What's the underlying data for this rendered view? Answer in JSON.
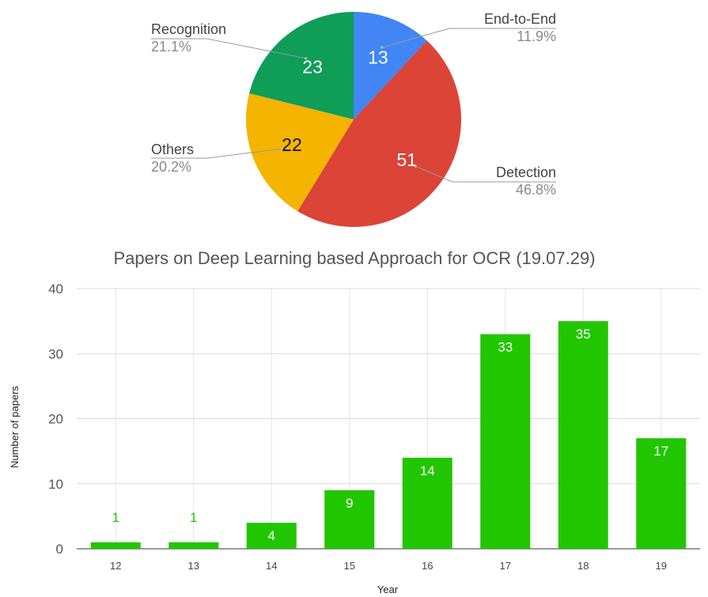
{
  "chart_data": [
    {
      "type": "pie",
      "slices": [
        {
          "label": "End-to-End",
          "value": 13,
          "percent": "11.9%",
          "color": "#4285F4",
          "value_color": "#ffffff"
        },
        {
          "label": "Detection",
          "value": 51,
          "percent": "46.8%",
          "color": "#DB4437",
          "value_color": "#ffffff"
        },
        {
          "label": "Others",
          "value": 22,
          "percent": "20.2%",
          "color": "#F4B400",
          "value_color": "#111111"
        },
        {
          "label": "Recognition",
          "value": 23,
          "percent": "21.1%",
          "color": "#0F9D58",
          "value_color": "#ffffff"
        }
      ]
    },
    {
      "type": "bar",
      "title": "Papers on Deep Learning based Approach for OCR (19.07.29)",
      "xlabel": "Year",
      "ylabel": "Number of papers",
      "categories": [
        "12",
        "13",
        "14",
        "15",
        "16",
        "17",
        "18",
        "19"
      ],
      "values": [
        1,
        1,
        4,
        9,
        14,
        33,
        35,
        17
      ],
      "ylim": [
        0,
        40
      ],
      "yticks": [
        0,
        10,
        20,
        30,
        40
      ],
      "grid": true,
      "bar_color": "#22C600",
      "label_inside_color": "#ffffff",
      "label_outside_color": "#22C600"
    }
  ]
}
